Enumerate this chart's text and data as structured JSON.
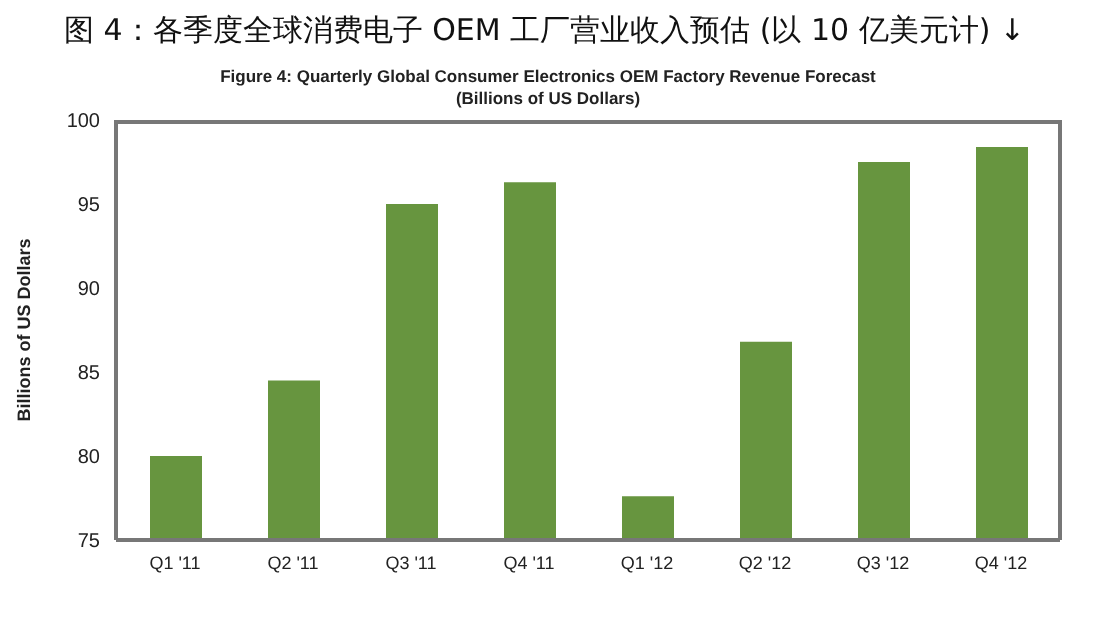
{
  "chart_data": {
    "type": "bar",
    "title": "图 4：各季度全球消费电子 OEM 工厂营业收入预估 (以 10 亿美元计) ↓",
    "subtitle": "Figure 4: Quarterly Global Consumer Electronics OEM Factory Revenue Forecast\n(Billions of US Dollars)",
    "ylabel": "Billions of US Dollars",
    "categories": [
      "Q1 '11",
      "Q2 '11",
      "Q3 '11",
      "Q4 '11",
      "Q1 '12",
      "Q2 '12",
      "Q3 '12",
      "Q4 '12"
    ],
    "values": [
      80.0,
      84.5,
      95.0,
      96.3,
      77.6,
      86.8,
      97.5,
      98.4
    ],
    "color": "#67953f",
    "ylim": [
      75,
      100
    ],
    "yticks": [
      75,
      80,
      85,
      90,
      95,
      100
    ],
    "grid": false
  }
}
